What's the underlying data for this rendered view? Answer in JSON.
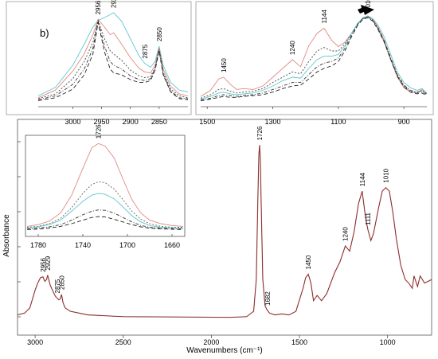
{
  "chart_data": [
    {
      "name": "main-spectrum",
      "type": "line",
      "xlabel": "Wavenumbers (cm⁻¹)",
      "ylabel": "Absorbance",
      "xlim": [
        3100,
        750
      ],
      "ylim": [
        0,
        1
      ],
      "xticks": [
        3000,
        2500,
        2000,
        1500,
        1000
      ],
      "x_reversed": true,
      "grid": false,
      "peak_labels": [
        "2956",
        "2929",
        "2875",
        "2850",
        "1726",
        "1682",
        "1450",
        "1240",
        "1144",
        "1111",
        "1010"
      ],
      "series": [
        {
          "color": "#c0504d",
          "x": [
            3100,
            3060,
            3030,
            3000,
            2985,
            2970,
            2956,
            2945,
            2935,
            2929,
            2915,
            2900,
            2885,
            2875,
            2865,
            2858,
            2850,
            2842,
            2830,
            2800,
            2700,
            2500,
            2200,
            1900,
            1800,
            1760,
            1745,
            1735,
            1730,
            1726,
            1722,
            1716,
            1708,
            1695,
            1682,
            1670,
            1640,
            1600,
            1560,
            1520,
            1480,
            1465,
            1450,
            1435,
            1420,
            1400,
            1375,
            1345,
            1300,
            1270,
            1240,
            1215,
            1190,
            1165,
            1144,
            1125,
            1111,
            1095,
            1080,
            1050,
            1030,
            1010,
            990,
            970,
            950,
            925,
            900,
            880,
            860,
            850,
            830,
            815,
            790,
            770,
            750
          ],
          "y": [
            0.02,
            0.03,
            0.06,
            0.16,
            0.2,
            0.23,
            0.235,
            0.21,
            0.22,
            0.245,
            0.19,
            0.155,
            0.125,
            0.115,
            0.105,
            0.11,
            0.135,
            0.09,
            0.06,
            0.04,
            0.02,
            0.01,
            0.008,
            0.006,
            0.01,
            0.04,
            0.22,
            0.72,
            0.93,
            0.98,
            0.9,
            0.6,
            0.22,
            0.07,
            0.045,
            0.03,
            0.02,
            0.025,
            0.02,
            0.04,
            0.17,
            0.23,
            0.25,
            0.2,
            0.1,
            0.13,
            0.1,
            0.14,
            0.26,
            0.32,
            0.41,
            0.38,
            0.49,
            0.65,
            0.72,
            0.57,
            0.5,
            0.44,
            0.48,
            0.63,
            0.72,
            0.74,
            0.72,
            0.6,
            0.45,
            0.3,
            0.22,
            0.2,
            0.17,
            0.24,
            0.18,
            0.24,
            0.2,
            0.21,
            0.22
          ]
        }
      ]
    },
    {
      "name": "inset-carbonyl",
      "type": "line",
      "xlim": [
        1790,
        1650
      ],
      "xticks": [
        1780,
        1740,
        1700,
        1660
      ],
      "x_reversed": true,
      "peak_labels": [
        "1726"
      ],
      "series": [
        {
          "color": "#e08a80",
          "dash": "",
          "x": [
            1790,
            1780,
            1770,
            1760,
            1750,
            1740,
            1732,
            1726,
            1720,
            1712,
            1704,
            1696,
            1688,
            1680,
            1670,
            1660,
            1650
          ],
          "y": [
            0.05,
            0.07,
            0.11,
            0.2,
            0.4,
            0.7,
            0.93,
            0.98,
            0.95,
            0.82,
            0.58,
            0.35,
            0.2,
            0.12,
            0.08,
            0.06,
            0.05
          ]
        },
        {
          "color": "#666666",
          "dash": "2,2",
          "x": [
            1790,
            1780,
            1770,
            1760,
            1750,
            1740,
            1732,
            1726,
            1720,
            1712,
            1704,
            1696,
            1688,
            1680,
            1670,
            1660,
            1650
          ],
          "y": [
            0.04,
            0.05,
            0.08,
            0.14,
            0.26,
            0.42,
            0.52,
            0.55,
            0.54,
            0.47,
            0.35,
            0.22,
            0.13,
            0.08,
            0.05,
            0.04,
            0.04
          ]
        },
        {
          "color": "#5fc7d1",
          "dash": "",
          "x": [
            1790,
            1780,
            1770,
            1760,
            1750,
            1740,
            1732,
            1726,
            1720,
            1712,
            1704,
            1696,
            1688,
            1680,
            1670,
            1660,
            1650
          ],
          "y": [
            0.03,
            0.045,
            0.07,
            0.12,
            0.22,
            0.33,
            0.4,
            0.42,
            0.41,
            0.36,
            0.27,
            0.17,
            0.1,
            0.06,
            0.04,
            0.035,
            0.03
          ]
        },
        {
          "color": "#333333",
          "dash": "4,2,1,2",
          "x": [
            1790,
            1780,
            1770,
            1760,
            1750,
            1740,
            1732,
            1726,
            1720,
            1712,
            1704,
            1696,
            1688,
            1680,
            1670,
            1660,
            1650
          ],
          "y": [
            0.02,
            0.03,
            0.045,
            0.07,
            0.12,
            0.18,
            0.22,
            0.235,
            0.23,
            0.2,
            0.15,
            0.1,
            0.06,
            0.04,
            0.03,
            0.025,
            0.02
          ]
        },
        {
          "color": "#222222",
          "dash": "5,3",
          "x": [
            1790,
            1780,
            1770,
            1760,
            1750,
            1740,
            1732,
            1726,
            1720,
            1712,
            1704,
            1696,
            1688,
            1680,
            1670,
            1660,
            1650
          ],
          "y": [
            0.015,
            0.02,
            0.03,
            0.05,
            0.08,
            0.12,
            0.15,
            0.16,
            0.155,
            0.13,
            0.1,
            0.07,
            0.045,
            0.03,
            0.022,
            0.018,
            0.015
          ]
        }
      ]
    },
    {
      "name": "inset-ch-stretch",
      "type": "line",
      "xlim": [
        3060,
        2800
      ],
      "xticks": [
        3000,
        2950,
        2900,
        2850
      ],
      "x_reversed": true,
      "panel_label": "b)",
      "peak_labels": [
        "2929",
        "2956",
        "2875",
        "2850"
      ],
      "series": [
        {
          "color": "#5fc7d1",
          "dash": "",
          "x": [
            3060,
            3030,
            3000,
            2980,
            2965,
            2956,
            2945,
            2935,
            2929,
            2915,
            2900,
            2885,
            2875,
            2865,
            2857,
            2850,
            2843,
            2830,
            2815,
            2800
          ],
          "y": [
            0.08,
            0.17,
            0.4,
            0.62,
            0.8,
            0.87,
            0.9,
            0.93,
            0.95,
            0.86,
            0.68,
            0.5,
            0.42,
            0.38,
            0.44,
            0.6,
            0.4,
            0.22,
            0.14,
            0.12
          ]
        },
        {
          "color": "#e08a80",
          "dash": "",
          "x": [
            3060,
            3030,
            3000,
            2980,
            2965,
            2956,
            2945,
            2935,
            2929,
            2915,
            2900,
            2885,
            2875,
            2865,
            2857,
            2850,
            2843,
            2830,
            2815,
            2800
          ],
          "y": [
            0.06,
            0.14,
            0.34,
            0.52,
            0.72,
            0.88,
            0.8,
            0.72,
            0.74,
            0.62,
            0.48,
            0.37,
            0.33,
            0.32,
            0.4,
            0.58,
            0.36,
            0.18,
            0.1,
            0.08
          ]
        },
        {
          "color": "#444444",
          "dash": "2,2",
          "x": [
            3060,
            3030,
            3000,
            2980,
            2965,
            2956,
            2945,
            2935,
            2929,
            2915,
            2900,
            2885,
            2875,
            2865,
            2857,
            2850,
            2843,
            2830,
            2815,
            2800
          ],
          "y": [
            0.05,
            0.1,
            0.26,
            0.44,
            0.64,
            0.87,
            0.68,
            0.55,
            0.52,
            0.45,
            0.35,
            0.29,
            0.27,
            0.28,
            0.38,
            0.57,
            0.33,
            0.15,
            0.08,
            0.06
          ]
        },
        {
          "color": "#333333",
          "dash": "4,2,1,2",
          "x": [
            3060,
            3030,
            3000,
            2980,
            2965,
            2956,
            2945,
            2935,
            2929,
            2915,
            2900,
            2885,
            2875,
            2865,
            2857,
            2850,
            2843,
            2830,
            2815,
            2800
          ],
          "y": [
            0.04,
            0.08,
            0.2,
            0.36,
            0.58,
            0.86,
            0.6,
            0.44,
            0.4,
            0.36,
            0.29,
            0.25,
            0.24,
            0.26,
            0.36,
            0.56,
            0.31,
            0.13,
            0.06,
            0.05
          ]
        },
        {
          "color": "#222222",
          "dash": "5,3",
          "x": [
            3060,
            3030,
            3000,
            2980,
            2965,
            2956,
            2945,
            2935,
            2929,
            2915,
            2900,
            2885,
            2875,
            2865,
            2857,
            2850,
            2843,
            2830,
            2815,
            2800
          ],
          "y": [
            0.03,
            0.06,
            0.15,
            0.3,
            0.52,
            0.85,
            0.54,
            0.36,
            0.32,
            0.3,
            0.25,
            0.22,
            0.22,
            0.24,
            0.35,
            0.55,
            0.3,
            0.12,
            0.05,
            0.04
          ]
        }
      ]
    },
    {
      "name": "inset-fingerprint",
      "type": "line",
      "xlim": [
        1520,
        830
      ],
      "xticks": [
        1500,
        1300,
        1100,
        900
      ],
      "x_reversed": true,
      "peak_labels": [
        "1450",
        "1240",
        "1144",
        "1010"
      ],
      "annotation": "arrow pointing to 1010 peak",
      "series": [
        {
          "color": "#e08a80",
          "dash": "",
          "x": [
            1520,
            1490,
            1465,
            1450,
            1430,
            1410,
            1390,
            1360,
            1330,
            1300,
            1270,
            1240,
            1215,
            1190,
            1165,
            1144,
            1120,
            1100,
            1080,
            1060,
            1040,
            1025,
            1010,
            995,
            980,
            960,
            940,
            920,
            900,
            880,
            860,
            845,
            830
          ],
          "y": [
            0.08,
            0.15,
            0.28,
            0.3,
            0.22,
            0.16,
            0.17,
            0.16,
            0.2,
            0.3,
            0.4,
            0.5,
            0.42,
            0.66,
            0.8,
            0.86,
            0.72,
            0.65,
            0.7,
            0.8,
            0.92,
            0.97,
            1.0,
            0.96,
            0.88,
            0.72,
            0.5,
            0.3,
            0.18,
            0.13,
            0.12,
            0.16,
            0.12
          ]
        },
        {
          "color": "#444444",
          "dash": "2,2",
          "x": [
            1520,
            1490,
            1465,
            1450,
            1430,
            1410,
            1390,
            1360,
            1330,
            1300,
            1270,
            1240,
            1215,
            1190,
            1165,
            1144,
            1120,
            1100,
            1080,
            1060,
            1040,
            1025,
            1010,
            995,
            980,
            960,
            940,
            920,
            900,
            880,
            860,
            845,
            830
          ],
          "y": [
            0.06,
            0.1,
            0.16,
            0.17,
            0.14,
            0.12,
            0.13,
            0.14,
            0.17,
            0.24,
            0.3,
            0.36,
            0.34,
            0.48,
            0.6,
            0.64,
            0.6,
            0.6,
            0.68,
            0.8,
            0.92,
            0.97,
            0.99,
            0.95,
            0.86,
            0.7,
            0.5,
            0.32,
            0.2,
            0.14,
            0.12,
            0.15,
            0.11
          ]
        },
        {
          "color": "#5fc7d1",
          "dash": "",
          "x": [
            1520,
            1490,
            1465,
            1450,
            1430,
            1410,
            1390,
            1360,
            1330,
            1300,
            1270,
            1240,
            1215,
            1190,
            1165,
            1144,
            1120,
            1100,
            1080,
            1060,
            1040,
            1025,
            1010,
            995,
            980,
            960,
            940,
            920,
            900,
            880,
            860,
            845,
            830
          ],
          "y": [
            0.05,
            0.08,
            0.12,
            0.13,
            0.11,
            0.1,
            0.11,
            0.12,
            0.15,
            0.2,
            0.26,
            0.3,
            0.29,
            0.4,
            0.5,
            0.54,
            0.54,
            0.56,
            0.66,
            0.8,
            0.92,
            0.98,
            1.0,
            0.97,
            0.9,
            0.76,
            0.56,
            0.36,
            0.24,
            0.18,
            0.15,
            0.17,
            0.12
          ]
        },
        {
          "color": "#333333",
          "dash": "4,2,1,2",
          "x": [
            1520,
            1490,
            1465,
            1450,
            1430,
            1410,
            1390,
            1360,
            1330,
            1300,
            1270,
            1240,
            1215,
            1190,
            1165,
            1144,
            1120,
            1100,
            1080,
            1060,
            1040,
            1025,
            1010,
            995,
            980,
            960,
            940,
            920,
            900,
            880,
            860,
            845,
            830
          ],
          "y": [
            0.04,
            0.06,
            0.09,
            0.1,
            0.09,
            0.08,
            0.09,
            0.1,
            0.12,
            0.16,
            0.2,
            0.24,
            0.24,
            0.33,
            0.42,
            0.46,
            0.48,
            0.52,
            0.63,
            0.78,
            0.91,
            0.97,
            0.99,
            0.95,
            0.87,
            0.72,
            0.52,
            0.33,
            0.21,
            0.15,
            0.13,
            0.14,
            0.1
          ]
        },
        {
          "color": "#222222",
          "dash": "5,3",
          "x": [
            1520,
            1490,
            1465,
            1450,
            1430,
            1410,
            1390,
            1360,
            1330,
            1300,
            1270,
            1240,
            1215,
            1190,
            1165,
            1144,
            1120,
            1100,
            1080,
            1060,
            1040,
            1025,
            1010,
            995,
            980,
            960,
            940,
            920,
            900,
            880,
            860,
            845,
            830
          ],
          "y": [
            0.03,
            0.05,
            0.07,
            0.08,
            0.07,
            0.07,
            0.08,
            0.09,
            0.1,
            0.13,
            0.17,
            0.2,
            0.21,
            0.28,
            0.36,
            0.4,
            0.43,
            0.48,
            0.6,
            0.76,
            0.9,
            0.96,
            0.98,
            0.94,
            0.85,
            0.7,
            0.5,
            0.31,
            0.19,
            0.13,
            0.11,
            0.12,
            0.09
          ]
        }
      ]
    }
  ]
}
